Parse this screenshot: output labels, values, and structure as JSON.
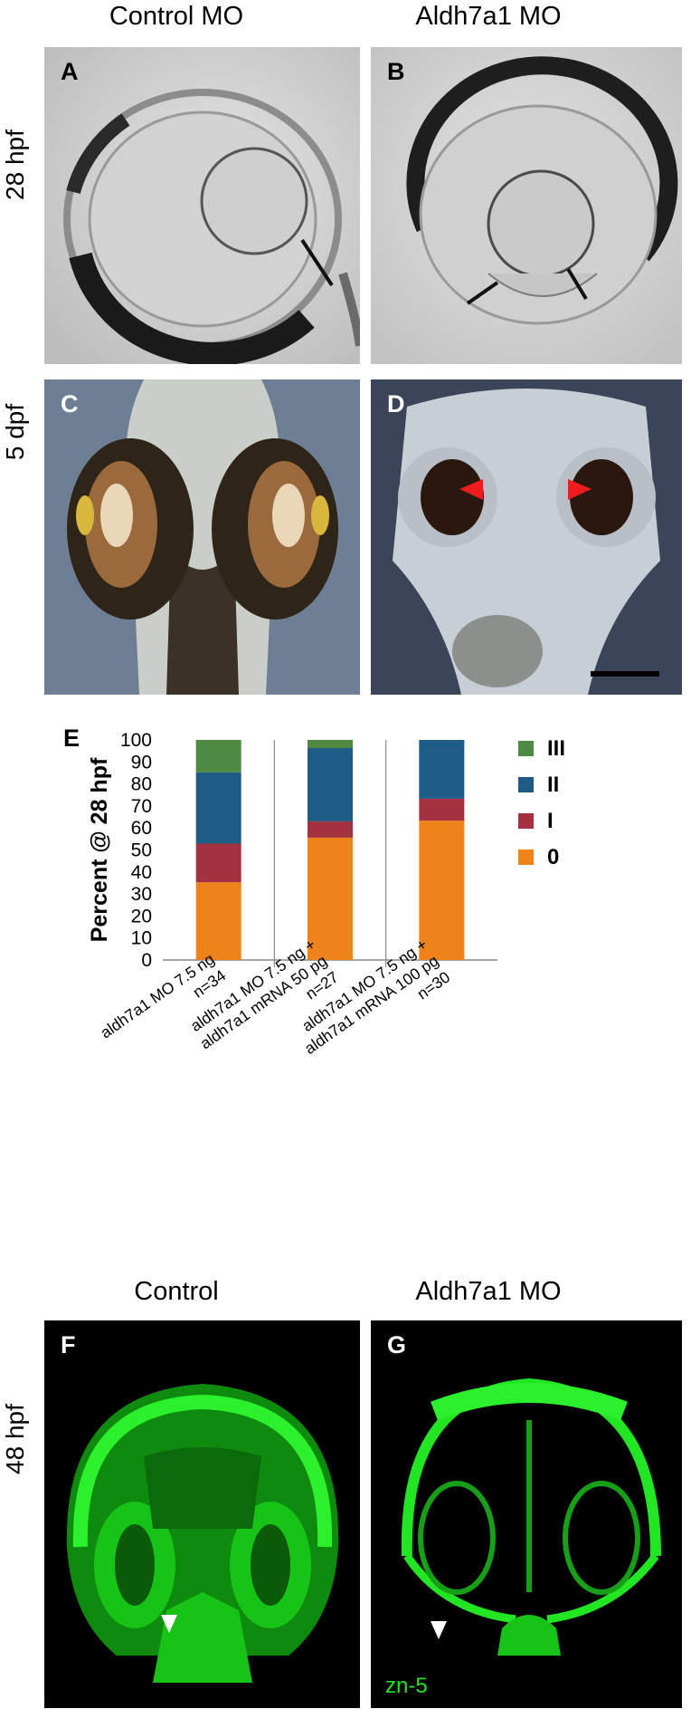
{
  "figure": {
    "top_headers": {
      "left": "Control MO",
      "right": "Aldh7a1 MO"
    },
    "row_labels": {
      "row1": "28 hpf",
      "row2": "5 dpf",
      "row3": "48 hpf"
    },
    "bottom_headers": {
      "left": "Control",
      "right": "Aldh7a1 MO"
    },
    "panels": {
      "A": {
        "letter": "A"
      },
      "B": {
        "letter": "B"
      },
      "C": {
        "letter": "C"
      },
      "D": {
        "letter": "D"
      },
      "F": {
        "letter": "F"
      },
      "G": {
        "letter": "G",
        "stain_label": "zn-5"
      }
    },
    "chart_panel_letter": "E",
    "colors": {
      "stack_0": "#ed8319",
      "stack_I": "#a4313f",
      "stack_II": "#1f5c85",
      "stack_III": "#4f8a45",
      "fluorescence": "#22e622",
      "arrowhead_red": "#ee1c1c"
    }
  },
  "chart_data": {
    "type": "bar",
    "stacked": true,
    "ylabel": "Percent @ 28 hpf",
    "ylim": [
      0,
      100
    ],
    "yticks": [
      "0",
      "10",
      "20",
      "30",
      "40",
      "50",
      "60",
      "70",
      "80",
      "90",
      "100"
    ],
    "categories": [
      [
        "aldh7a1 MO 7.5 ng",
        "n=34"
      ],
      [
        "aldh7a1 MO 7.5 ng +",
        "aldh7a1 mRNA 50 pg",
        "n=27"
      ],
      [
        "aldh7a1 MO 7.5 ng +",
        "aldh7a1 mRNA 100 pg",
        "n=30"
      ]
    ],
    "series": [
      {
        "name": "0",
        "color": "#ed8319",
        "values": [
          35.3,
          55.6,
          63.3
        ]
      },
      {
        "name": "I",
        "color": "#a4313f",
        "values": [
          17.6,
          7.4,
          10.0
        ]
      },
      {
        "name": "II",
        "color": "#1f5c85",
        "values": [
          32.4,
          33.3,
          26.7
        ]
      },
      {
        "name": "III",
        "color": "#4f8a45",
        "values": [
          14.7,
          3.7,
          0.0
        ]
      }
    ],
    "legend_order": [
      "III",
      "II",
      "I",
      "0"
    ],
    "legend_position": "right",
    "grid": false
  }
}
